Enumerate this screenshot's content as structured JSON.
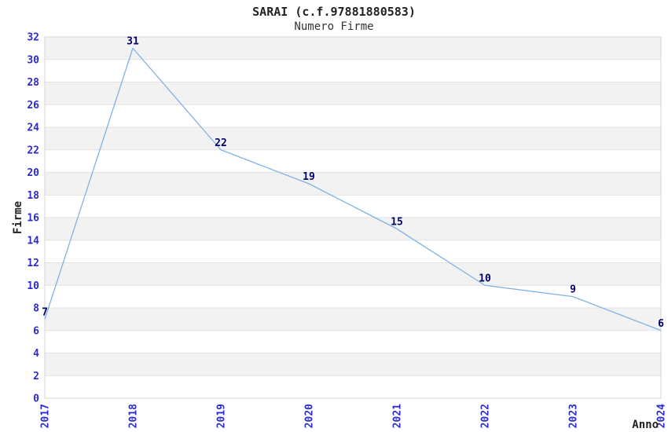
{
  "chart_data": {
    "type": "line",
    "title": "SARAI (c.f.97881880583)",
    "subtitle": "Numero Firme",
    "xlabel": "Anno",
    "ylabel": "Firme",
    "categories": [
      "2017",
      "2018",
      "2019",
      "2020",
      "2021",
      "2022",
      "2023",
      "2024"
    ],
    "values": [
      7,
      31,
      22,
      19,
      15,
      10,
      9,
      6
    ],
    "ylim": [
      0,
      32
    ],
    "ytick_step": 2,
    "grid": "horizontal-bands-alternating",
    "legend": "none",
    "colors": {
      "line": "#7FB2E5",
      "tick_label": "#2B2BCF",
      "data_label": "#000066",
      "band_gray": "#F2F2F2",
      "band_white": "#FFFFFF",
      "grid_line": "#E2E2E2",
      "plot_border": "#D4D4D4",
      "text": "#222222",
      "background": "#FFFFFF"
    }
  }
}
